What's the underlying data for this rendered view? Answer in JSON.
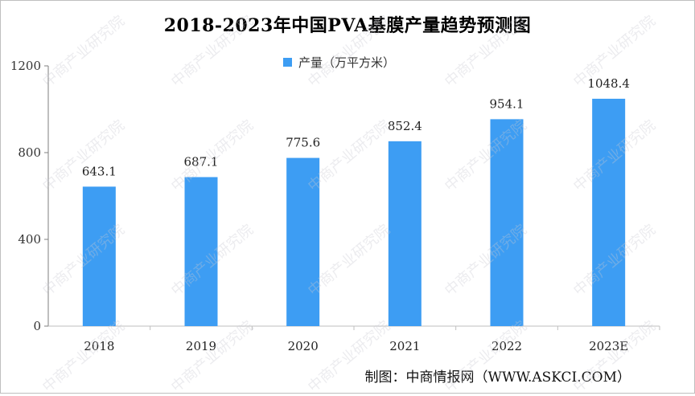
{
  "title": "2018-2023年中国PVA基膜产量趋势预测图",
  "legend": {
    "label": "产量（万平方米）",
    "color": "#3d9df3"
  },
  "source": "制图：中商情报网（WWW.ASKCI.COM）",
  "watermark": "中商产业研究院",
  "chart_data": {
    "type": "bar",
    "title": "2018-2023年中国PVA基膜产量趋势预测图",
    "categories": [
      "2018",
      "2019",
      "2020",
      "2021",
      "2022",
      "2023E"
    ],
    "series": [
      {
        "name": "产量（万平方米）",
        "values": [
          643.1,
          687.1,
          775.6,
          852.4,
          954.1,
          1048.4
        ],
        "color": "#3d9df3"
      }
    ],
    "value_labels": [
      "643.1",
      "687.1",
      "775.6",
      "852.4",
      "954.1",
      "1048.4"
    ],
    "yticks": [
      "0",
      "400",
      "800",
      "1200"
    ],
    "ylim": [
      0,
      1200
    ],
    "grid": false,
    "legend_position": "top-center"
  }
}
